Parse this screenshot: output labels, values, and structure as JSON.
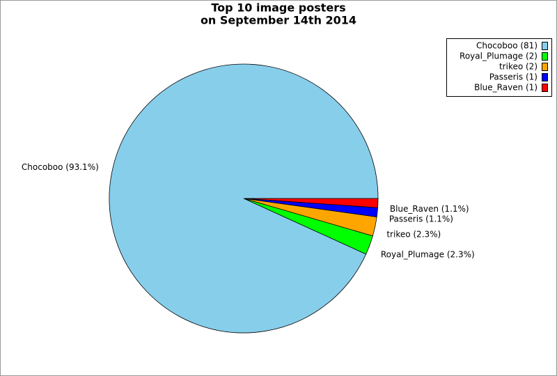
{
  "chart_data": {
    "type": "pie",
    "title": [
      "Top 10 image posters",
      "on September 14th 2014"
    ],
    "categories": [
      "Chocoboo",
      "Royal_Plumage",
      "trikeo",
      "Passeris",
      "Blue_Raven"
    ],
    "values": [
      93.1,
      2.3,
      2.3,
      1.1,
      1.1
    ],
    "value_labels": [
      "Chocoboo (93.1%)",
      "Royal_Plumage (2.3%)",
      "trikeo (2.3%)",
      "Passeris (1.1%)",
      "Blue_Raven (1.1%)"
    ],
    "legend_labels": [
      "Chocoboo (81)",
      "Royal_Plumage (2)",
      "trikeo (2)",
      "Passeris (1)",
      "Blue_Raven (1)"
    ],
    "colors": [
      "#87ceeb",
      "#00ff00",
      "#ffa500",
      "#0000ff",
      "#ff0000"
    ],
    "legend": "top-right"
  }
}
